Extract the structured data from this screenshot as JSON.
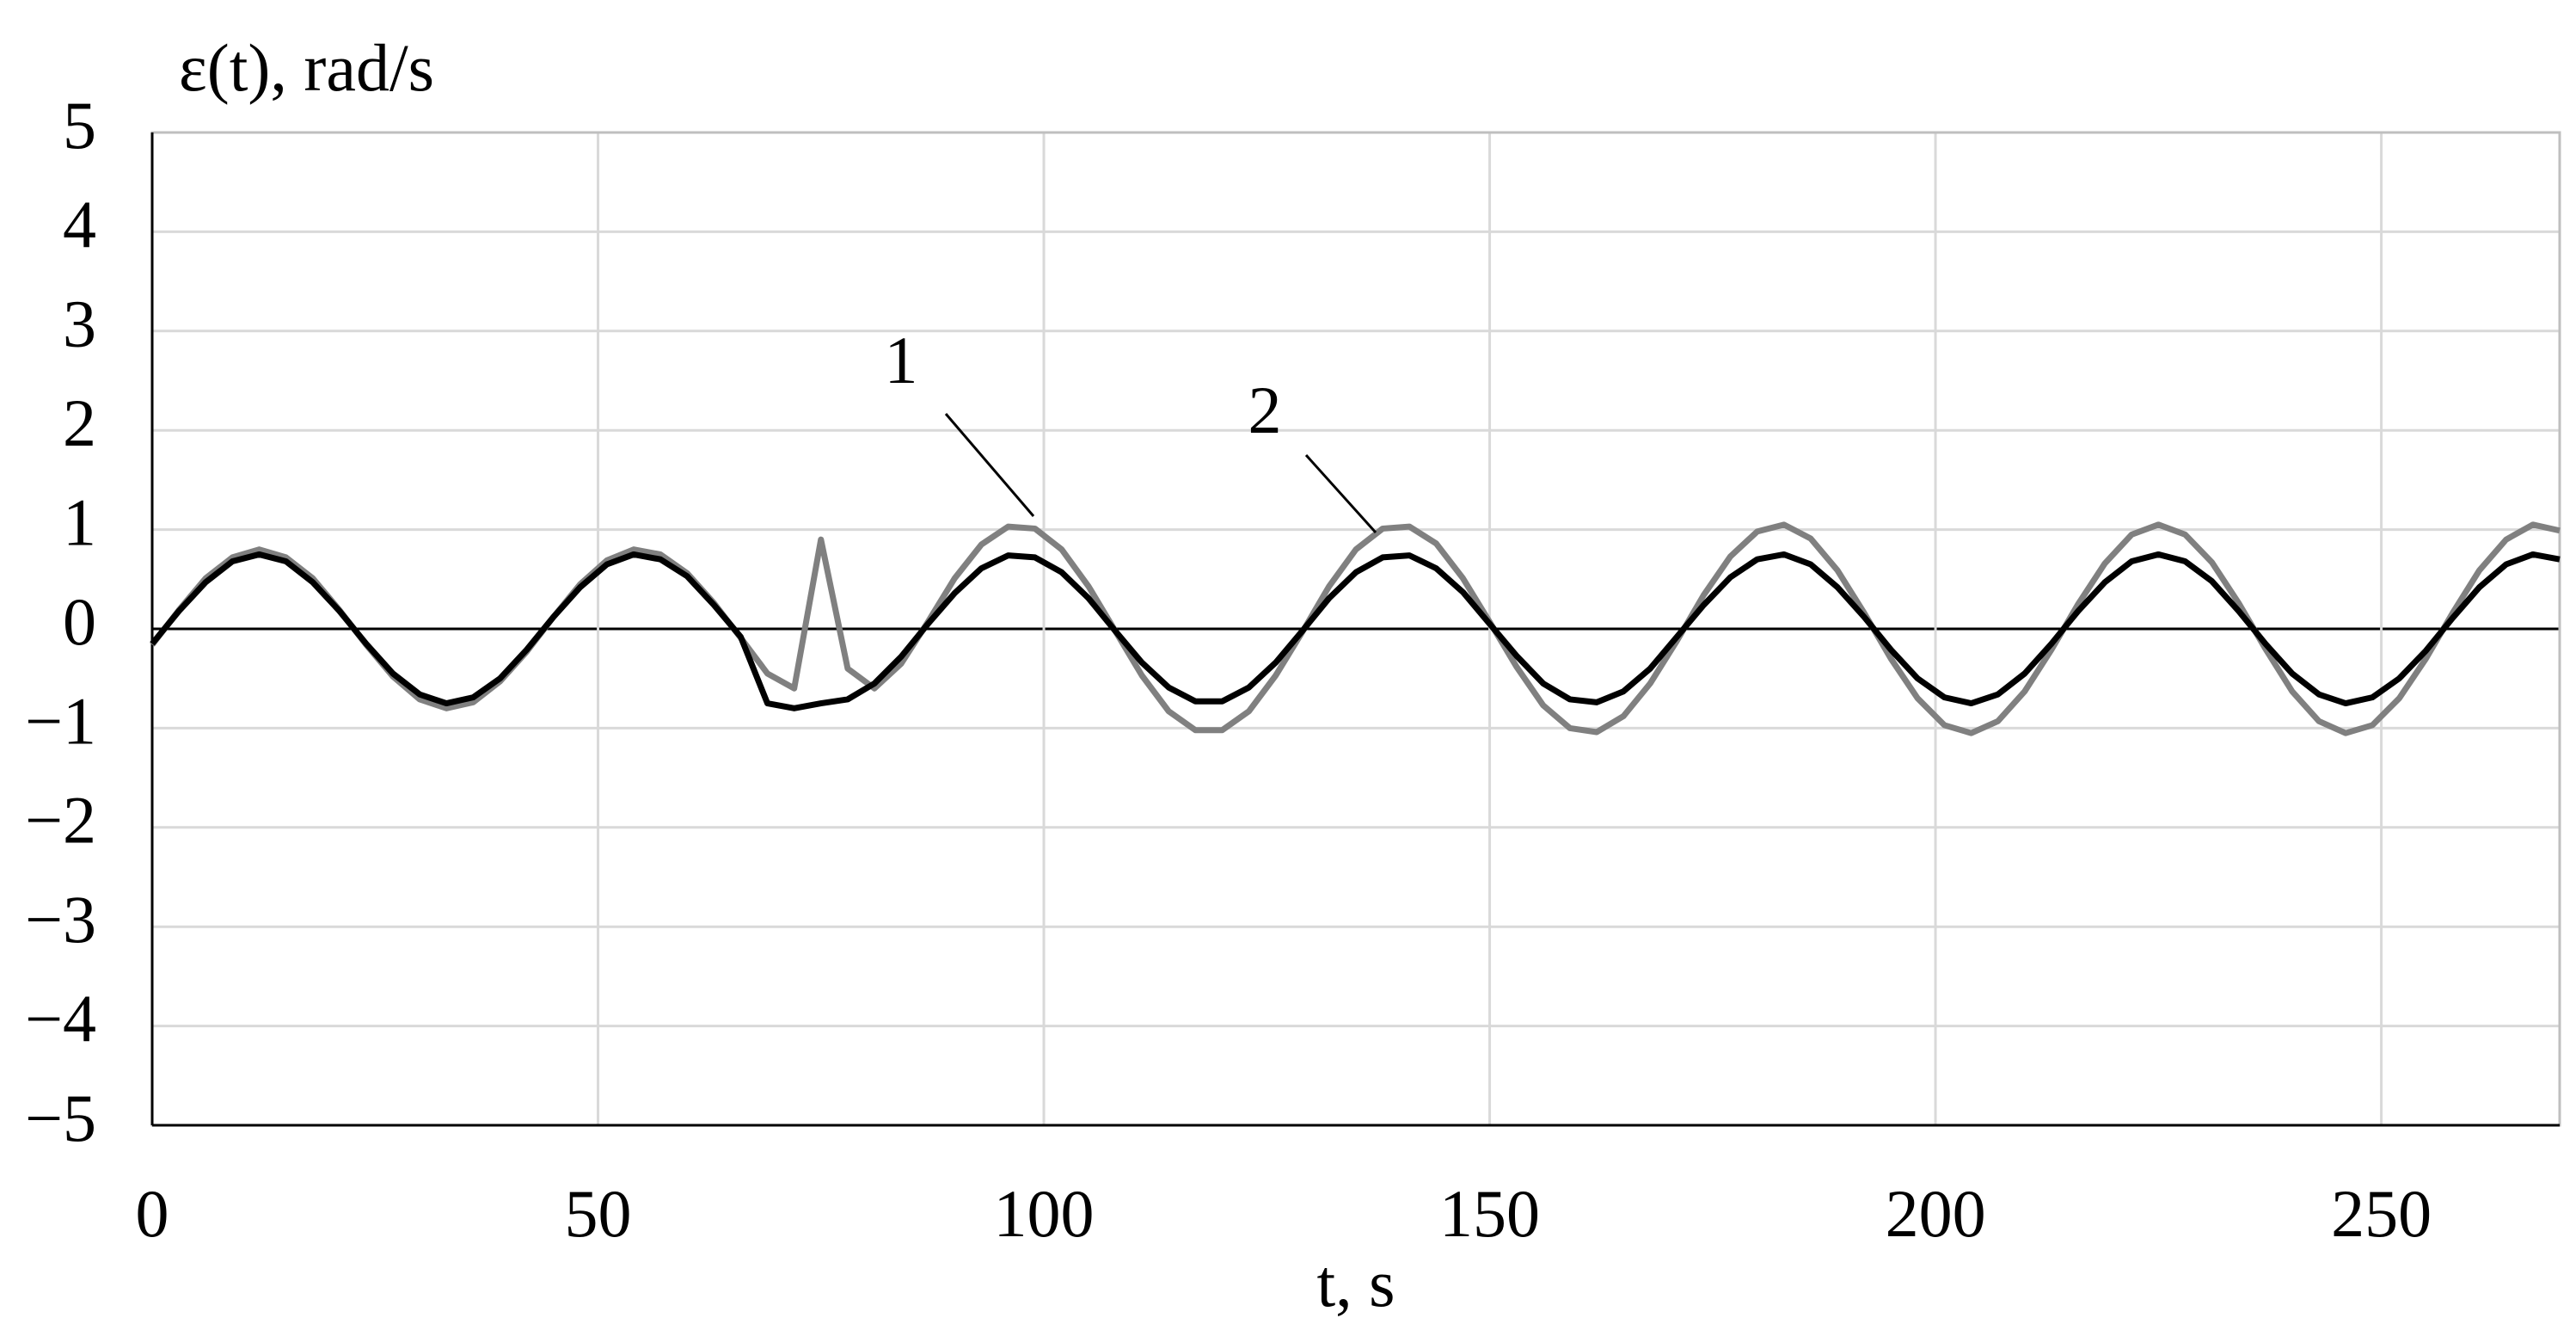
{
  "chart_data": {
    "type": "line",
    "y_label": "ε(t), rad/s",
    "x_label": "t, s",
    "x": [
      0,
      3,
      6,
      9,
      12,
      15,
      18,
      21,
      24,
      27,
      30,
      33,
      36,
      39,
      42,
      45,
      48,
      51,
      54,
      57,
      60,
      63,
      66,
      69,
      72,
      75,
      78,
      81,
      84,
      87,
      90,
      93,
      96,
      99,
      102,
      105,
      108,
      111,
      114,
      117,
      120,
      123,
      126,
      129,
      132,
      135,
      138,
      141,
      144,
      147,
      150,
      153,
      156,
      159,
      162,
      165,
      168,
      171,
      174,
      177,
      180,
      183,
      186,
      189,
      192,
      195,
      198,
      201,
      204,
      207,
      210,
      213,
      216,
      219,
      222,
      225,
      228,
      231,
      234,
      237,
      240,
      243,
      246,
      249,
      252,
      255,
      258,
      261,
      264,
      267,
      270
    ],
    "series": [
      {
        "name": "1",
        "color": "#808080",
        "values": [
          -0.16,
          0.19,
          0.51,
          0.72,
          0.8,
          0.72,
          0.51,
          0.19,
          -0.16,
          -0.48,
          -0.71,
          -0.8,
          -0.74,
          -0.53,
          -0.23,
          0.12,
          0.45,
          0.69,
          0.8,
          0.75,
          0.56,
          0.26,
          -0.09,
          -0.45,
          -0.6,
          0.9,
          -0.4,
          -0.6,
          -0.35,
          0.07,
          0.51,
          0.85,
          1.03,
          1.01,
          0.8,
          0.43,
          -0.02,
          -0.47,
          -0.83,
          -1.02,
          -1.02,
          -0.83,
          -0.47,
          -0.03,
          0.43,
          0.8,
          1.01,
          1.03,
          0.86,
          0.51,
          0.07,
          -0.38,
          -0.77,
          -1,
          -1.04,
          -0.88,
          -0.55,
          -0.12,
          0.34,
          0.73,
          0.98,
          1.05,
          0.91,
          0.59,
          0.16,
          -0.3,
          -0.7,
          -0.97,
          -1.05,
          -0.93,
          -0.63,
          -0.21,
          0.25,
          0.66,
          0.95,
          1.05,
          0.95,
          0.67,
          0.26,
          -0.2,
          -0.63,
          -0.93,
          -1.05,
          -0.97,
          -0.7,
          -0.3,
          0.16,
          0.59,
          0.9,
          1.05,
          0.99
        ]
      },
      {
        "name": "2",
        "color": "#000000",
        "values": [
          -0.15,
          0.18,
          0.47,
          0.68,
          0.75,
          0.68,
          0.47,
          0.18,
          -0.15,
          -0.45,
          -0.66,
          -0.75,
          -0.69,
          -0.5,
          -0.21,
          0.12,
          0.42,
          0.65,
          0.75,
          0.7,
          0.53,
          0.24,
          -0.08,
          -0.75,
          -0.8,
          -0.75,
          -0.71,
          -0.55,
          -0.28,
          0.05,
          0.36,
          0.61,
          0.74,
          0.72,
          0.57,
          0.31,
          -0.02,
          -0.34,
          -0.59,
          -0.73,
          -0.73,
          -0.59,
          -0.34,
          -0.02,
          0.31,
          0.57,
          0.72,
          0.74,
          0.61,
          0.37,
          0.05,
          -0.27,
          -0.55,
          -0.71,
          -0.74,
          -0.63,
          -0.4,
          -0.08,
          0.24,
          0.52,
          0.7,
          0.75,
          0.65,
          0.42,
          0.12,
          -0.21,
          -0.5,
          -0.69,
          -0.75,
          -0.66,
          -0.45,
          -0.15,
          0.18,
          0.47,
          0.68,
          0.75,
          0.68,
          0.48,
          0.18,
          -0.15,
          -0.45,
          -0.66,
          -0.75,
          -0.69,
          -0.5,
          -0.22,
          0.11,
          0.42,
          0.65,
          0.75,
          0.7
        ]
      }
    ],
    "xlim": [
      0,
      270
    ],
    "xticks": [
      0,
      50,
      100,
      150,
      200,
      250
    ],
    "ylim": [
      -5,
      5
    ],
    "yticks": [
      {
        "value": -5,
        "label": "−5"
      },
      {
        "value": -4,
        "label": "−4"
      },
      {
        "value": -3,
        "label": "−3"
      },
      {
        "value": -2,
        "label": "−2"
      },
      {
        "value": -1,
        "label": "−1"
      },
      0,
      1,
      2,
      3,
      4,
      5
    ],
    "grid": true
  }
}
